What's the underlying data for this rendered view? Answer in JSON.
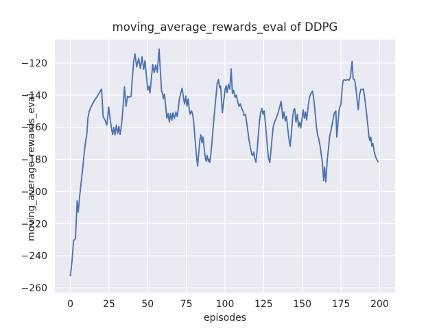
{
  "figure": {
    "background": "#ffffff",
    "plot_background": "#eaeaf2",
    "grid_color": "#ffffff",
    "text_color": "#262626"
  },
  "chart_data": {
    "type": "line",
    "title": "moving_average_rewards_eval of DDPG",
    "xlabel": "episodes",
    "ylabel": "moving_average_rewards_eval",
    "xlim": [
      -10,
      210
    ],
    "ylim": [
      -263.1,
      -105.3
    ],
    "xticks": [
      0,
      25,
      50,
      75,
      100,
      125,
      150,
      175,
      200
    ],
    "yticks": [
      -120,
      -140,
      -160,
      -180,
      -200,
      -220,
      -240,
      -260
    ],
    "grid": true,
    "legend_position": "none",
    "series": [
      {
        "name": "moving_average_rewards_eval",
        "color": "#4c72b0",
        "linewidth": 1.9,
        "points": [
          [
            0,
            -252.5
          ],
          [
            1.1,
            -243
          ],
          [
            2.1,
            -230.5
          ],
          [
            3.3,
            -229.4
          ],
          [
            4.4,
            -205.8
          ],
          [
            5.1,
            -212.8
          ],
          [
            5.9,
            -204
          ],
          [
            6.9,
            -195.3
          ],
          [
            7.7,
            -188.2
          ],
          [
            8.5,
            -181
          ],
          [
            9.2,
            -173.9
          ],
          [
            10,
            -168.3
          ],
          [
            10.7,
            -163.9
          ],
          [
            11.4,
            -154
          ],
          [
            12.1,
            -150.4
          ],
          [
            12.9,
            -148.3
          ],
          [
            14.3,
            -145.5
          ],
          [
            15.8,
            -142.9
          ],
          [
            17.3,
            -140.9
          ],
          [
            18.8,
            -138.4
          ],
          [
            20.2,
            -136.2
          ],
          [
            21.2,
            -153.4
          ],
          [
            22.3,
            -155.3
          ],
          [
            23.6,
            -158.6
          ],
          [
            24.8,
            -147.4
          ],
          [
            25.9,
            -156.1
          ],
          [
            26.7,
            -161.4
          ],
          [
            27.4,
            -164.5
          ],
          [
            28.1,
            -160.1
          ],
          [
            28.9,
            -164.7
          ],
          [
            29.8,
            -158.6
          ],
          [
            30.6,
            -163.9
          ],
          [
            31.4,
            -159.5
          ],
          [
            32.2,
            -164.4
          ],
          [
            33.2,
            -157.8
          ],
          [
            34.1,
            -147.5
          ],
          [
            35,
            -134.8
          ],
          [
            36,
            -146.9
          ],
          [
            37,
            -140.6
          ],
          [
            38.1,
            -141.3
          ],
          [
            39.3,
            -140.7
          ],
          [
            40.2,
            -128.2
          ],
          [
            41,
            -118.6
          ],
          [
            41.8,
            -114.3
          ],
          [
            42.9,
            -122.4
          ],
          [
            44.2,
            -117
          ],
          [
            45.3,
            -123.4
          ],
          [
            46.4,
            -116.1
          ],
          [
            47.4,
            -123.9
          ],
          [
            48.3,
            -118.6
          ],
          [
            49.2,
            -127.8
          ],
          [
            50.1,
            -136.9
          ],
          [
            50.8,
            -134.4
          ],
          [
            51.5,
            -138.6
          ],
          [
            52.4,
            -129.7
          ],
          [
            53.3,
            -120.9
          ],
          [
            54.2,
            -126
          ],
          [
            55.2,
            -121.2
          ],
          [
            56.2,
            -125.7
          ],
          [
            57.4,
            -111.2
          ],
          [
            58.3,
            -126.5
          ],
          [
            59,
            -137.4
          ],
          [
            59.6,
            -138.9
          ],
          [
            60.2,
            -142.3
          ],
          [
            60.9,
            -139.4
          ],
          [
            61.7,
            -147.6
          ],
          [
            62.4,
            -154.3
          ],
          [
            63.2,
            -151.4
          ],
          [
            64,
            -156.6
          ],
          [
            64.8,
            -151.3
          ],
          [
            65.6,
            -155.6
          ],
          [
            66.4,
            -151
          ],
          [
            67.3,
            -154.4
          ],
          [
            68.3,
            -150.5
          ],
          [
            69.1,
            -153.4
          ],
          [
            69.8,
            -148.3
          ],
          [
            70.5,
            -142.6
          ],
          [
            71.3,
            -139.1
          ],
          [
            72.3,
            -135.7
          ],
          [
            73.2,
            -141.9
          ],
          [
            73.9,
            -145.5
          ],
          [
            74.7,
            -140.5
          ],
          [
            75.4,
            -146.9
          ],
          [
            76.2,
            -142.3
          ],
          [
            77,
            -149.8
          ],
          [
            77.6,
            -151.9
          ],
          [
            78.3,
            -149.8
          ],
          [
            79,
            -151.4
          ],
          [
            79.8,
            -156.8
          ],
          [
            80.5,
            -165.4
          ],
          [
            81.3,
            -175.4
          ],
          [
            82.3,
            -184.2
          ],
          [
            83.1,
            -175.4
          ],
          [
            83.8,
            -167.5
          ],
          [
            84.4,
            -164.7
          ],
          [
            85.1,
            -169.7
          ],
          [
            85.8,
            -166.1
          ],
          [
            86.5,
            -172.5
          ],
          [
            87.2,
            -178.3
          ],
          [
            87.8,
            -181.1
          ],
          [
            88.5,
            -177.5
          ],
          [
            89.2,
            -181.1
          ],
          [
            89.7,
            -179.9
          ],
          [
            90.2,
            -181.8
          ],
          [
            91,
            -175.4
          ],
          [
            91.8,
            -166.8
          ],
          [
            92.5,
            -158.3
          ],
          [
            93.3,
            -149.8
          ],
          [
            94.1,
            -141.4
          ],
          [
            95,
            -132.4
          ],
          [
            95.8,
            -130.3
          ],
          [
            96.5,
            -135.5
          ],
          [
            97.2,
            -134.3
          ],
          [
            98.3,
            -150.9
          ],
          [
            99.4,
            -141.9
          ],
          [
            100.1,
            -136.3
          ],
          [
            100.7,
            -134.1
          ],
          [
            101.4,
            -138.4
          ],
          [
            102.2,
            -133.4
          ],
          [
            103.1,
            -136.2
          ],
          [
            104,
            -123.6
          ],
          [
            104.8,
            -138.9
          ],
          [
            105.6,
            -136.9
          ],
          [
            106.5,
            -141.4
          ],
          [
            107.3,
            -139.9
          ],
          [
            108.3,
            -144.4
          ],
          [
            109.1,
            -147
          ],
          [
            109.9,
            -145.4
          ],
          [
            110.8,
            -148.3
          ],
          [
            111.6,
            -149.8
          ],
          [
            112.3,
            -152.6
          ],
          [
            113.2,
            -151.9
          ],
          [
            114.1,
            -157.6
          ],
          [
            114.9,
            -163.2
          ],
          [
            115.6,
            -168.3
          ],
          [
            116.4,
            -172.5
          ],
          [
            117.3,
            -176.8
          ],
          [
            118,
            -177.6
          ],
          [
            118.6,
            -175.4
          ],
          [
            119.3,
            -179.6
          ],
          [
            120,
            -181.8
          ],
          [
            120.8,
            -174.6
          ],
          [
            121.5,
            -165.4
          ],
          [
            122.3,
            -156.1
          ],
          [
            123,
            -151.2
          ],
          [
            123.8,
            -148.3
          ],
          [
            124.6,
            -151.9
          ],
          [
            125.3,
            -149.8
          ],
          [
            126,
            -156.1
          ],
          [
            126.8,
            -164.7
          ],
          [
            127.5,
            -173.2
          ],
          [
            128.2,
            -179.6
          ],
          [
            129,
            -181.9
          ],
          [
            129.7,
            -174.6
          ],
          [
            130.5,
            -166.1
          ],
          [
            131.2,
            -159.7
          ],
          [
            132,
            -156.8
          ],
          [
            133,
            -154.7
          ],
          [
            134,
            -152.1
          ],
          [
            135.1,
            -148.4
          ],
          [
            136.3,
            -143.8
          ],
          [
            137.4,
            -154.7
          ],
          [
            138.2,
            -150.5
          ],
          [
            139,
            -156.1
          ],
          [
            139.8,
            -153.2
          ],
          [
            140.6,
            -161.1
          ],
          [
            141.4,
            -167.5
          ],
          [
            142.1,
            -171.8
          ],
          [
            142.9,
            -164.7
          ],
          [
            143.6,
            -155.4
          ],
          [
            144.3,
            -149.8
          ],
          [
            145.1,
            -148.3
          ],
          [
            145.9,
            -156.8
          ],
          [
            146.8,
            -151.9
          ],
          [
            147.6,
            -159.7
          ],
          [
            148.3,
            -156.9
          ],
          [
            149,
            -160.4
          ],
          [
            150,
            -153.4
          ],
          [
            150.6,
            -149.1
          ],
          [
            151.3,
            -154.4
          ],
          [
            152.1,
            -150.5
          ],
          [
            152.8,
            -155.4
          ],
          [
            153.8,
            -146.9
          ],
          [
            154.6,
            -141.3
          ],
          [
            155.6,
            -138.9
          ],
          [
            156.6,
            -137.5
          ],
          [
            157.6,
            -144
          ],
          [
            158.4,
            -151.9
          ],
          [
            159.2,
            -160.4
          ],
          [
            159.9,
            -164.7
          ],
          [
            160.6,
            -167.1
          ],
          [
            161.4,
            -171.1
          ],
          [
            162.1,
            -176.1
          ],
          [
            162.9,
            -181.2
          ],
          [
            163.8,
            -193.3
          ],
          [
            164.4,
            -184.8
          ],
          [
            165.2,
            -194.1
          ],
          [
            166.1,
            -180.5
          ],
          [
            166.9,
            -173.4
          ],
          [
            167.6,
            -166.1
          ],
          [
            168.7,
            -161.3
          ],
          [
            169.7,
            -156.1
          ],
          [
            170.7,
            -151.2
          ],
          [
            171.7,
            -149.8
          ],
          [
            172.3,
            -166.1
          ],
          [
            173.1,
            -156.9
          ],
          [
            173.8,
            -149.1
          ],
          [
            174.5,
            -146.9
          ],
          [
            175,
            -145.5
          ],
          [
            175.7,
            -136.3
          ],
          [
            176.3,
            -131.2
          ],
          [
            177.1,
            -130.3
          ],
          [
            178.2,
            -130.8
          ],
          [
            179.2,
            -130.2
          ],
          [
            180.2,
            -130.7
          ],
          [
            181.1,
            -128.7
          ],
          [
            182.2,
            -118.9
          ],
          [
            182.9,
            -129.8
          ],
          [
            183.6,
            -130.2
          ],
          [
            184.1,
            -131.7
          ],
          [
            184.8,
            -136.9
          ],
          [
            185.5,
            -143.4
          ],
          [
            186.2,
            -149.1
          ],
          [
            187,
            -139.8
          ],
          [
            187.9,
            -136.3
          ],
          [
            188.7,
            -136.6
          ],
          [
            189.5,
            -136.1
          ],
          [
            190.6,
            -143.4
          ],
          [
            191.6,
            -151.9
          ],
          [
            192.4,
            -159
          ],
          [
            193.1,
            -166.1
          ],
          [
            193.7,
            -168.3
          ],
          [
            194.3,
            -166.1
          ],
          [
            195,
            -171.8
          ],
          [
            195.7,
            -170.2
          ],
          [
            196.4,
            -174.6
          ],
          [
            197.1,
            -177.5
          ],
          [
            198,
            -179.8
          ],
          [
            199,
            -181.5
          ]
        ]
      }
    ]
  }
}
